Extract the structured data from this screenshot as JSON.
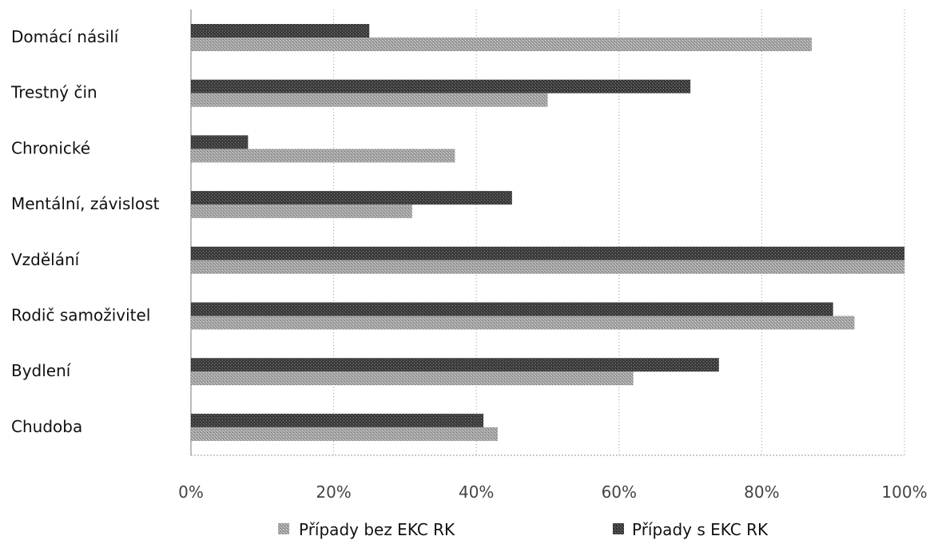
{
  "chart_data": {
    "type": "bar",
    "orientation": "horizontal",
    "categories": [
      "Domácí násilí",
      "Trestný čin",
      "Chronické",
      "Mentální, závislost",
      "Vzdělání",
      "Rodič samoživitel",
      "Bydlení",
      "Chudoba"
    ],
    "series": [
      {
        "name": "Případy s EKC RK",
        "values": [
          0.25,
          0.7,
          0.08,
          0.45,
          1.0,
          0.9,
          0.74,
          0.41
        ],
        "color": "#3a3a3a"
      },
      {
        "name": "Případy bez EKC RK",
        "values": [
          0.87,
          0.5,
          0.37,
          0.31,
          1.0,
          0.93,
          0.62,
          0.43
        ],
        "color": "#9a9a9a"
      }
    ],
    "xticks": [
      "0%",
      "20%",
      "40%",
      "60%",
      "80%",
      "100%"
    ],
    "xlim": [
      0,
      1
    ],
    "grid": true,
    "legend": "bottom",
    "legend_order": [
      "Případy bez EKC RK",
      "Případy s EKC RK"
    ]
  }
}
